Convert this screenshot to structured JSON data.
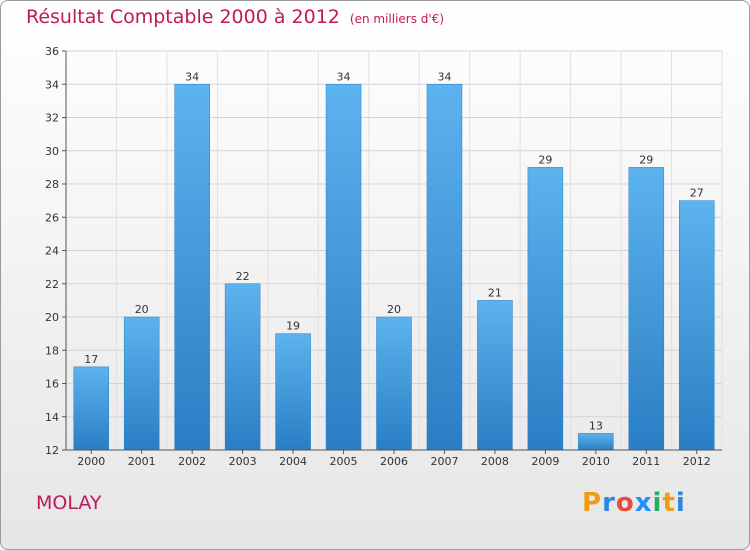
{
  "title": "Résultat Comptable 2000 à 2012",
  "unit": "(en milliers d'€)",
  "commune": "MOLAY",
  "logo": {
    "text": "Proxiti",
    "letters": [
      "P",
      "r",
      "o",
      "x",
      "i",
      "t",
      "i"
    ],
    "colors": [
      "#f39c12",
      "#2e86de",
      "#e74c3c",
      "#1e90ff",
      "#27ae60",
      "#f39c12",
      "#2e86de"
    ]
  },
  "colors": {
    "title": "#c2185b",
    "bar": "#3d9be0",
    "bar_light": "#5cb3ee",
    "bar_dark": "#2a7ec4"
  },
  "chart_data": {
    "type": "bar",
    "title": "Résultat Comptable 2000 à 2012",
    "xlabel": "",
    "ylabel": "(en milliers d'€)",
    "categories": [
      "2000",
      "2001",
      "2002",
      "2003",
      "2004",
      "2005",
      "2006",
      "2007",
      "2008",
      "2009",
      "2010",
      "2011",
      "2012"
    ],
    "values": [
      17,
      20,
      34,
      22,
      19,
      34,
      20,
      34,
      21,
      29,
      13,
      29,
      27
    ],
    "ylim": [
      12,
      36
    ],
    "yticks": [
      12,
      14,
      16,
      18,
      20,
      22,
      24,
      26,
      28,
      30,
      32,
      34,
      36
    ],
    "grid": true
  }
}
